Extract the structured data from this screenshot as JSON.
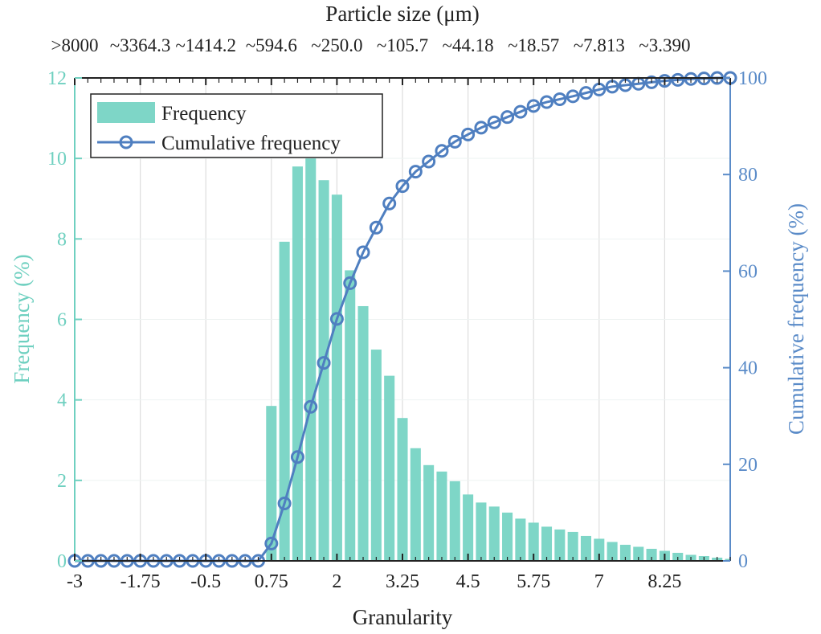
{
  "chart_data": {
    "type": "bar+line",
    "title": "",
    "xlabel": "Granularity",
    "ylabel": "Frequency (%)",
    "y2label": "Cumulative frequency (%)",
    "top_axis_label": "Particle size (μm)",
    "xlim": [
      -3,
      9.5
    ],
    "ylim": [
      0,
      12
    ],
    "y2lim": [
      0,
      100
    ],
    "x_ticks": [
      -3,
      -1.75,
      -0.5,
      0.75,
      2,
      3.25,
      4.5,
      5.75,
      7,
      8.25
    ],
    "x_tick_labels": [
      "-3",
      "-1.75",
      "-0.5",
      "0.75",
      "2",
      "3.25",
      "4.5",
      "5.75",
      "7",
      "8.25"
    ],
    "y_ticks": [
      0,
      2,
      4,
      6,
      8,
      10,
      12
    ],
    "y_tick_labels": [
      "0",
      "2",
      "4",
      "6",
      "8",
      "10",
      "12"
    ],
    "y2_ticks": [
      0,
      20,
      40,
      60,
      80,
      100
    ],
    "y2_tick_labels": [
      "0",
      "20",
      "40",
      "60",
      "80",
      "100"
    ],
    "top_tick_labels": [
      ">8000",
      "~3364.3",
      "~1414.2",
      "~594.6",
      "~250.0",
      "~105.7",
      "~44.18",
      "~18.57",
      "~7.813",
      "~3.390"
    ],
    "grid": true,
    "legend_position": "top-left",
    "colors": {
      "frequency": "#7ed6c7",
      "cumulative": "#4f7fc0",
      "left_axis": "#6fd0c0",
      "right_axis": "#5a8bc8",
      "grid": "#dddddd"
    },
    "series": [
      {
        "name": "Frequency",
        "kind": "bar",
        "x": [
          0.75,
          1.0,
          1.25,
          1.5,
          1.75,
          2.0,
          2.25,
          2.5,
          2.75,
          3.0,
          3.25,
          3.5,
          3.75,
          4.0,
          4.25,
          4.5,
          4.75,
          5.0,
          5.25,
          5.5,
          5.75,
          6.0,
          6.25,
          6.5,
          6.75,
          7.0,
          7.25,
          7.5,
          7.75,
          8.0,
          8.25,
          8.5,
          8.75,
          9.0,
          9.25,
          9.5
        ],
        "values": [
          3.85,
          7.93,
          9.8,
          10.0,
          9.46,
          9.1,
          7.22,
          6.33,
          5.25,
          4.6,
          3.55,
          2.8,
          2.38,
          2.22,
          1.98,
          1.65,
          1.45,
          1.35,
          1.2,
          1.05,
          0.95,
          0.85,
          0.78,
          0.72,
          0.62,
          0.55,
          0.47,
          0.4,
          0.35,
          0.3,
          0.25,
          0.2,
          0.15,
          0.12,
          0.08,
          0.05
        ]
      },
      {
        "name": "Cumulative frequency",
        "kind": "line",
        "x": [
          -3.0,
          -2.75,
          -2.5,
          -2.25,
          -2.0,
          -1.75,
          -1.5,
          -1.25,
          -1.0,
          -0.75,
          -0.5,
          -0.25,
          0.0,
          0.25,
          0.5,
          0.75,
          1.0,
          1.25,
          1.5,
          1.75,
          2.0,
          2.25,
          2.5,
          2.75,
          3.0,
          3.25,
          3.5,
          3.75,
          4.0,
          4.25,
          4.5,
          4.75,
          5.0,
          5.25,
          5.5,
          5.75,
          6.0,
          6.25,
          6.5,
          6.75,
          7.0,
          7.25,
          7.5,
          7.75,
          8.0,
          8.25,
          8.5,
          8.75,
          9.0,
          9.25,
          9.5
        ],
        "values": [
          0,
          0,
          0,
          0,
          0,
          0,
          0,
          0,
          0,
          0,
          0,
          0,
          0,
          0,
          0,
          3.6,
          11.9,
          21.5,
          31.9,
          41.0,
          50.1,
          57.5,
          63.9,
          69.0,
          74.0,
          77.6,
          80.6,
          82.7,
          84.9,
          86.8,
          88.3,
          89.7,
          90.8,
          91.9,
          93.0,
          94.2,
          95.0,
          95.6,
          96.2,
          96.9,
          97.6,
          98.2,
          98.5,
          98.8,
          99.1,
          99.4,
          99.6,
          99.8,
          99.9,
          100.0,
          100.0
        ]
      }
    ]
  }
}
